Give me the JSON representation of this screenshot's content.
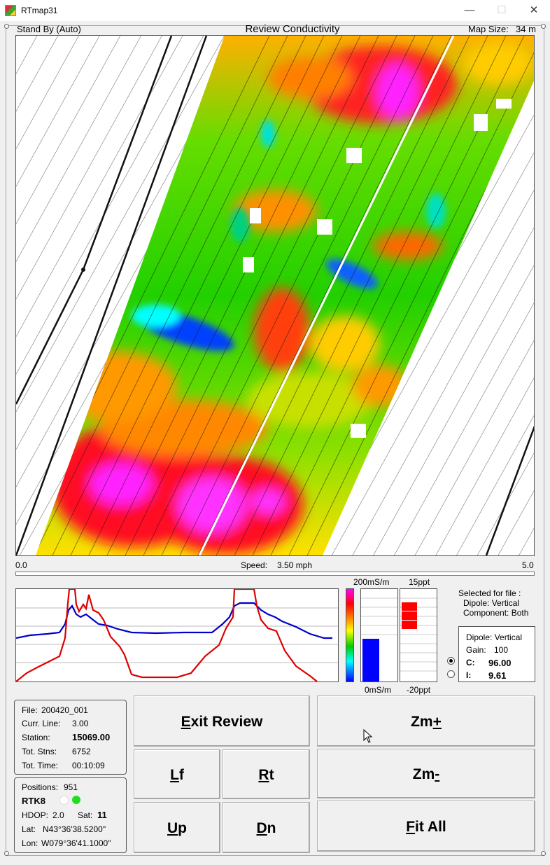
{
  "window": {
    "title": "RTmap31",
    "minimize": "—",
    "maximize": "☐",
    "close": "✕"
  },
  "header": {
    "status": "Stand By (Auto)",
    "title": "Review Conductivity",
    "map_size_label": "Map Size:",
    "map_size_value": "34 m"
  },
  "speed": {
    "min": "0.0",
    "label": "Speed:",
    "value": "3.50 mph",
    "max": "5.0"
  },
  "colorbar": {
    "top": "200mS/m",
    "bottom": "0mS/m",
    "conductivity_fraction": 0.46
  },
  "inphase": {
    "top": "15ppt",
    "bottom": "-20ppt",
    "fraction": 0.35
  },
  "selected": {
    "line1": "Selected for file :",
    "line2": "Dipole: Vertical",
    "line3": "Component: Both"
  },
  "dipole": {
    "title": "Dipole: Vertical",
    "gain_label": "Gain:",
    "gain_value": "100",
    "c_label": "C:",
    "c_value": "96.00",
    "i_label": "I:",
    "i_value": "9.61",
    "selected": "C"
  },
  "file_info": {
    "file_label": "File:",
    "file_value": "200420_001",
    "line_label": "Curr. Line:",
    "line_value": "3.00",
    "station_label": "Station:",
    "station_value": "15069.00",
    "stns_label": "Tot. Stns:",
    "stns_value": "6752",
    "time_label": "Tot. Time:",
    "time_value": "00:10:09"
  },
  "gps": {
    "positions_label": "Positions:",
    "positions_value": "951",
    "mode": "RTK8",
    "hdop_label": "HDOP:",
    "hdop_value": "2.0",
    "sat_label": "Sat:",
    "sat_value": "11",
    "lat_label": "Lat:",
    "lat_value": "N43°36'38.5200\"",
    "lon_label": "Lon:",
    "lon_value": "W079°36'41.1000\""
  },
  "buttons": {
    "exit_key": "E",
    "exit_rest": "xit Review",
    "zoom_in_pre": "Zm",
    "zoom_in_key": "+",
    "zoom_out_pre": "Zm",
    "zoom_out_key": "-",
    "left_key": "L",
    "left_rest": "f",
    "right_key": "R",
    "right_rest": "t",
    "up_key": "U",
    "up_rest": "p",
    "down_key": "D",
    "down_rest": "n",
    "fit_key": "F",
    "fit_rest": "it All"
  },
  "colors": {
    "magenta": "#ff00ff",
    "red": "#ff0000",
    "orange": "#ff8800",
    "yellow": "#ffff00",
    "green": "#00cc00",
    "cyan": "#00ffff",
    "blue": "#0000ff",
    "trace_blue": "#0000cc",
    "trace_red": "#dd0000",
    "gps_green": "#22dd22"
  }
}
